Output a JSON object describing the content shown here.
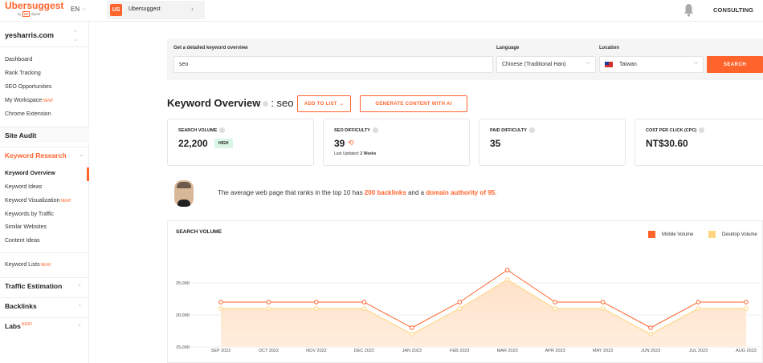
{
  "topbar": {
    "logo": "Ubersuggest",
    "logo_sub_by": "by",
    "logo_sub_np": "NP",
    "logo_sub_digital": "digital",
    "language": "EN",
    "project_badge": "US",
    "project_name": "Ubersuggest",
    "consulting": "CONSULTING"
  },
  "sidebar": {
    "site": "yesharris.com",
    "links": [
      "Dashboard",
      "Rank Tracking",
      "SEO Opportunities",
      "My Workspace",
      "Chrome Extension"
    ],
    "new_label": "NEW!",
    "site_audit": "Site Audit",
    "keyword_research": "Keyword Research",
    "kr_items": [
      "Keyword Overview",
      "Keyword Ideas",
      "Keyword Visualization",
      "Keywords by Traffic",
      "Similar Websites",
      "Content Ideas"
    ],
    "keyword_lists": "Keyword Lists",
    "traffic_estimation": "Traffic Estimation",
    "backlinks": "Backlinks",
    "labs": "Labs"
  },
  "search": {
    "label": "Get a detailed keyword overview",
    "value": "seo",
    "language_label": "Language",
    "language_value": "Chinese (Traditional Han)",
    "location_label": "Location",
    "location_value": "Taiwan",
    "button": "SEARCH"
  },
  "overview": {
    "title": "Keyword Overview",
    "colon": ": seo",
    "add_to_list": "ADD TO LIST",
    "generate": "GENERATE CONTENT WITH AI"
  },
  "metrics": {
    "search_volume_label": "SEARCH VOLUME",
    "search_volume": "22,200",
    "search_volume_badge": "HIGH",
    "seo_difficulty_label": "SEO DIFFICULTY",
    "seo_difficulty": "39",
    "seo_updated": "Last Updated:",
    "seo_updated_value": "2 Weeks",
    "paid_difficulty_label": "PAID DIFFICULTY",
    "paid_difficulty": "35",
    "cpc_label": "COST PER CLICK (CPC)",
    "cpc": "NT$30.60"
  },
  "tip": {
    "prefix": "The average web page that ranks in the top 10 has ",
    "backlinks": "200 backlinks",
    "middle": " and a ",
    "authority": "domain authority of 95."
  },
  "colors": {
    "accent": "#ff642d",
    "mobile": "#ff642d",
    "desktop": "#ffd580"
  },
  "chart_data": {
    "type": "area",
    "title": "SEARCH VOLUME",
    "categories": [
      "SEP 2022",
      "OCT 2022",
      "NOV 2022",
      "DEC 2022",
      "JAN 2023",
      "FEB 2023",
      "MAR 2023",
      "APR 2023",
      "MAY 2023",
      "JUN 2023",
      "JUL 2023",
      "AUG 2023"
    ],
    "y_ticks": [
      "15,000",
      "20,000",
      "25,000"
    ],
    "ylim": [
      15000,
      25000
    ],
    "series": [
      {
        "name": "Mobile Volume",
        "values": [
          22000,
          22000,
          22000,
          22000,
          18000,
          22000,
          27000,
          22000,
          22000,
          18000,
          22000,
          22000
        ]
      },
      {
        "name": "Desktop Volume",
        "values": [
          21000,
          21000,
          21000,
          21000,
          17000,
          21000,
          25500,
          21000,
          21000,
          17000,
          21000,
          21000
        ]
      }
    ]
  }
}
